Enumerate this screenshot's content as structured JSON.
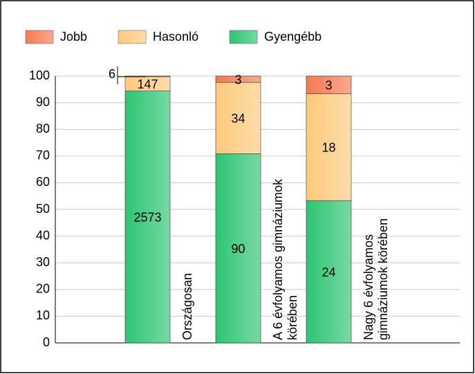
{
  "chart_data": {
    "type": "bar",
    "stacking": "percent",
    "categories": [
      "Országosan",
      "A 6 évfolyamos gimnáziumok körében",
      "Nagy 6 évfolyamos gimnáziumok körében"
    ],
    "series": [
      {
        "name": "Gyengébb",
        "color": "#2ec473",
        "values": [
          2573,
          90,
          24
        ]
      },
      {
        "name": "Hasonló",
        "color": "#fec97c",
        "values": [
          147,
          34,
          18
        ]
      },
      {
        "name": "Jobb",
        "color": "#f47a52",
        "values": [
          6,
          3,
          3
        ]
      }
    ],
    "legend_order": [
      "Jobb",
      "Hasonló",
      "Gyengébb"
    ],
    "ylim": [
      0,
      100
    ],
    "yticks": [
      0,
      10,
      20,
      30,
      40,
      50,
      60,
      70,
      80,
      90,
      100
    ],
    "grid": true
  }
}
